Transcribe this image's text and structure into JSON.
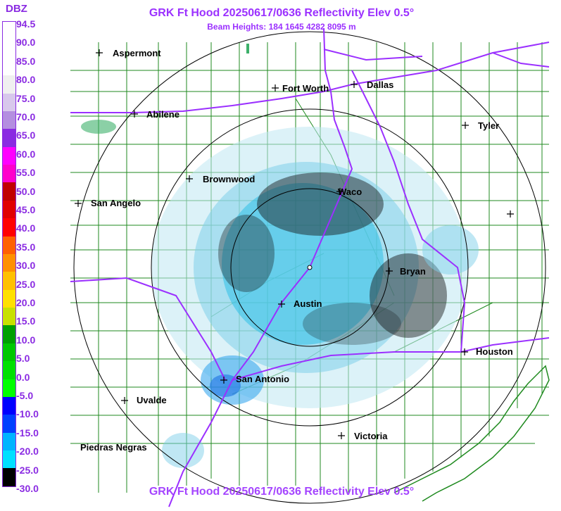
{
  "header": {
    "title": "GRK Ft Hood 20250617/0636 Reflectivity Elev 0.5°",
    "subtitle": "Beam Heights: 184 1645 4282 8095 m"
  },
  "legend": {
    "unit": "DBZ",
    "ticks": [
      "94.5",
      "90.0",
      "85.0",
      "80.0",
      "75.0",
      "70.0",
      "65.0",
      "60.0",
      "55.0",
      "50.0",
      "45.0",
      "40.0",
      "35.0",
      "30.0",
      "25.0",
      "20.0",
      "15.0",
      "10.0",
      "5.0",
      "0.0",
      "-5.0",
      "-10.0",
      "-15.0",
      "-20.0",
      "-25.0",
      "-30.0"
    ],
    "colors": [
      "#ffffff",
      "#ffffff",
      "#ffffff",
      "#f0f0f0",
      "#d8c8ec",
      "#b48ee0",
      "#8a2be2",
      "#ff00ff",
      "#ff00cc",
      "#c00000",
      "#e00000",
      "#ff0000",
      "#ff6000",
      "#ff9000",
      "#ffc000",
      "#ffe000",
      "#c8e000",
      "#00a000",
      "#00c800",
      "#00e000",
      "#00ff00",
      "#0000ff",
      "#0040ff",
      "#00b4ff",
      "#00e0ff",
      "#000000"
    ]
  },
  "cities": [
    {
      "name": "Aspermont"
    },
    {
      "name": "Fort Worth"
    },
    {
      "name": "Dallas"
    },
    {
      "name": "Abilene"
    },
    {
      "name": "Tyler"
    },
    {
      "name": "Brownwood"
    },
    {
      "name": "Waco"
    },
    {
      "name": "San Angelo"
    },
    {
      "name": "Bryan"
    },
    {
      "name": "Austin"
    },
    {
      "name": "Houston"
    },
    {
      "name": "San Antonio"
    },
    {
      "name": "Uvalde"
    },
    {
      "name": "Victoria"
    },
    {
      "name": "Piedras Negras"
    }
  ]
}
